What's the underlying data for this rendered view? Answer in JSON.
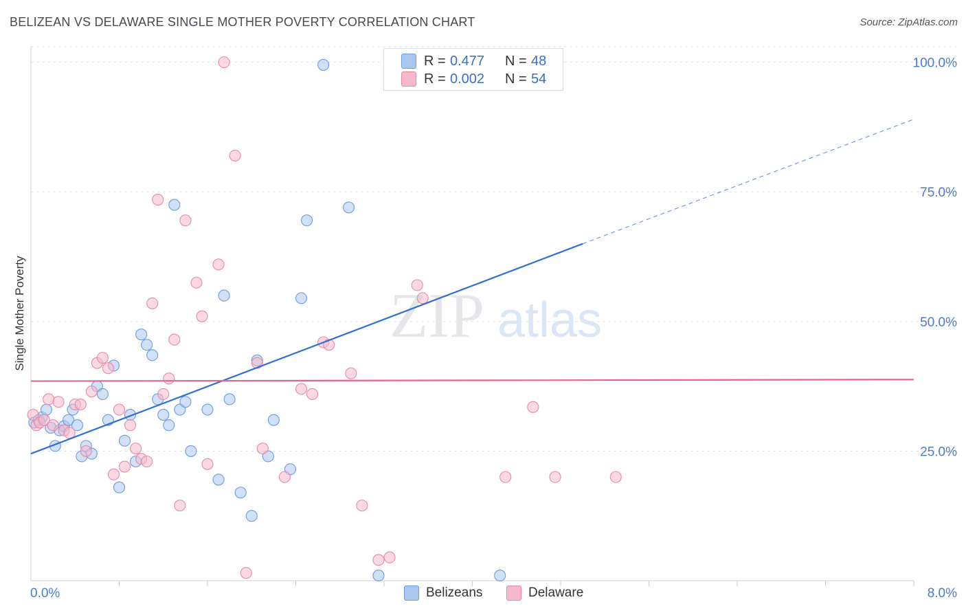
{
  "title": "BELIZEAN VS DELAWARE SINGLE MOTHER POVERTY CORRELATION CHART",
  "source": "Source: ZipAtlas.com",
  "watermark": {
    "zip": "ZIP",
    "atlas": "atlas"
  },
  "legend_stats": [
    {
      "r_label": "R =",
      "r_value": "0.477",
      "n_label": "N =",
      "n_value": "48",
      "color": "#a9c6ef",
      "stroke": "#6b9be0"
    },
    {
      "r_label": "R =",
      "r_value": "0.002",
      "n_label": "N =",
      "n_value": "54",
      "color": "#f6b9cc",
      "stroke": "#e889a6"
    }
  ],
  "chart_data": {
    "type": "scatter",
    "title": "BELIZEAN VS DELAWARE SINGLE MOTHER POVERTY CORRELATION CHART",
    "xlabel": "",
    "ylabel": "Single Mother Poverty",
    "xlim": [
      0,
      8
    ],
    "ylim": [
      0,
      103
    ],
    "x_tick_labels": [
      "0.0%",
      "8.0%"
    ],
    "y_ticks": [
      25,
      50,
      75,
      100
    ],
    "y_tick_labels": [
      "25.0%",
      "50.0%",
      "75.0%",
      "100.0%"
    ],
    "grid": true,
    "legend_position": "bottom",
    "series": [
      {
        "name": "Belizeans",
        "color": "#6b9be0",
        "fill": "#a9c6ef",
        "trend": {
          "x": [
            0,
            5.0
          ],
          "y": [
            24.5,
            65.0
          ],
          "dashed_to": [
            8.0,
            89.0
          ],
          "color": "#2f6fd0"
        },
        "x": [
          0.03,
          0.07,
          0.1,
          0.14,
          0.18,
          0.22,
          0.26,
          0.3,
          0.34,
          0.38,
          0.42,
          0.46,
          0.5,
          0.55,
          0.6,
          0.65,
          0.7,
          0.75,
          0.8,
          0.85,
          0.9,
          0.95,
          1.0,
          1.05,
          1.1,
          1.15,
          1.2,
          1.25,
          1.3,
          1.35,
          1.4,
          1.45,
          1.6,
          1.7,
          1.75,
          1.8,
          1.9,
          2.0,
          2.05,
          2.15,
          2.2,
          2.35,
          2.45,
          2.5,
          2.65,
          2.88,
          3.15,
          4.25
        ],
        "y": [
          30.5,
          31,
          31.5,
          33,
          29.5,
          26,
          29,
          29.8,
          31,
          33,
          30,
          24,
          26,
          24.5,
          37.5,
          36,
          31,
          41.5,
          18,
          27,
          32,
          23,
          47.5,
          45.5,
          43.5,
          35,
          32,
          30,
          72.5,
          33,
          34.5,
          25,
          33,
          19.5,
          55,
          35,
          17,
          12.5,
          42.5,
          24,
          31,
          21.5,
          54.5,
          69.5,
          99.5,
          72,
          1,
          1
        ]
      },
      {
        "name": "Delaware",
        "color": "#e889a6",
        "fill": "#f6b9cc",
        "trend": {
          "x": [
            0,
            8.0
          ],
          "y": [
            38.5,
            38.8
          ],
          "color": "#e0668e"
        },
        "x": [
          0.02,
          0.05,
          0.08,
          0.12,
          0.16,
          0.2,
          0.25,
          0.3,
          0.35,
          0.4,
          0.45,
          0.5,
          0.55,
          0.6,
          0.65,
          0.7,
          0.75,
          0.8,
          0.85,
          0.9,
          0.95,
          1.0,
          1.05,
          1.1,
          1.15,
          1.2,
          1.25,
          1.3,
          1.35,
          1.4,
          1.5,
          1.55,
          1.6,
          1.7,
          1.75,
          1.85,
          1.95,
          2.05,
          2.1,
          2.3,
          2.45,
          2.55,
          2.65,
          2.7,
          2.9,
          3.0,
          3.15,
          3.25,
          3.5,
          3.55,
          4.3,
          4.55,
          4.75,
          5.3
        ],
        "y": [
          32,
          30,
          30.5,
          31,
          35,
          30,
          34.5,
          29,
          28.5,
          34,
          34,
          25,
          36.5,
          42,
          43,
          41,
          20.5,
          33,
          22,
          30,
          25.5,
          23.5,
          23,
          53.5,
          73.5,
          36,
          39,
          46.5,
          14.5,
          69.5,
          57.5,
          51,
          22.5,
          61,
          100,
          82,
          1.5,
          42,
          25.5,
          20,
          37,
          36,
          46,
          45.5,
          40,
          14.5,
          4,
          4.5,
          57,
          54.5,
          20,
          33.5,
          20,
          20
        ]
      }
    ]
  }
}
